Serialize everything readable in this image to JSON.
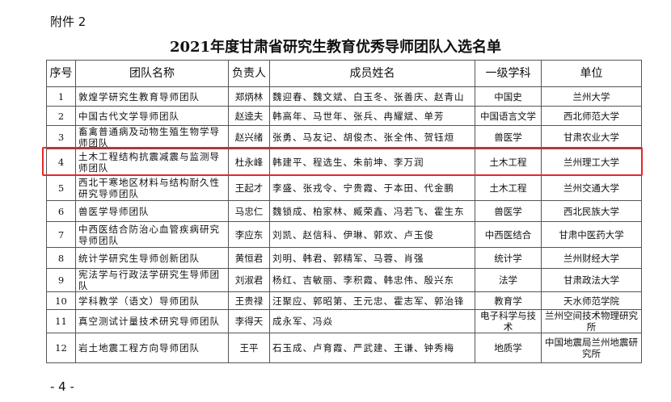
{
  "attachment_label": "附件 2",
  "title": "2021年度甘肃省研究生教育优秀导师团队入选名单",
  "table": {
    "headers": [
      "序号",
      "团队名称",
      "负责人",
      "成员姓名",
      "一级学科",
      "单位"
    ],
    "rows": [
      {
        "no": "1",
        "team": "敦煌学研究生教育导师团队",
        "leader": "郑炳林",
        "members": "魏迎春、魏文斌、白玉冬、张善庆、赵青山",
        "discipline": "中国史",
        "unit": "兰州大学"
      },
      {
        "no": "2",
        "team": "中国古代文学导师团队",
        "leader": "赵逵夫",
        "members": "韩高年、马世年、张兵、冉耀斌、单芳",
        "discipline": "中国语言文学",
        "unit": "西北师范大学"
      },
      {
        "no": "3",
        "team": "畜禽普通病及动物生殖生物学导师团队",
        "leader": "赵兴绪",
        "members": "张勇、马友记、胡俊杰、张全伟、贺钰烜",
        "discipline": "兽医学",
        "unit": "甘肃农业大学"
      },
      {
        "no": "4",
        "team": "土木工程结构抗震减震与监测导师团队",
        "leader": "杜永峰",
        "members": "韩建平、程选生、朱前坤、李万润",
        "discipline": "土木工程",
        "unit": "兰州理工大学"
      },
      {
        "no": "5",
        "team": "西北干寒地区材料与结构耐久性研究导师团队",
        "leader": "王起才",
        "members": "李盛、张戎令、宁贵霞、于本田、代金鹏",
        "discipline": "土木工程",
        "unit": "兰州交通大学"
      },
      {
        "no": "6",
        "team": "兽医学导师团队",
        "leader": "马忠仁",
        "members": "魏锁成、柏家林、臧荣鑫、冯若飞、霍生东",
        "discipline": "兽医学",
        "unit": "西北民族大学"
      },
      {
        "no": "7",
        "team": "中西医结合防治心血管疾病研究导师团队",
        "leader": "李应东",
        "members": "刘凯、赵信科、伊琳、郭欢、卢玉俊",
        "discipline": "中西医结合",
        "unit": "甘肃中医药大学"
      },
      {
        "no": "8",
        "team": "统计学研究生导师创新团队",
        "leader": "黄恒君",
        "members": "刘明、韩君、郭精军、马蓉、肖强",
        "discipline": "统计学",
        "unit": "兰州财经大学"
      },
      {
        "no": "9",
        "team": "宪法学与行政法学研究生导师团队",
        "leader": "刘淑君",
        "members": "杨红、吉敏丽、李积霞、韩忠伟、殷兴东",
        "discipline": "法学",
        "unit": "甘肃政法大学"
      },
      {
        "no": "10",
        "team": "学科教学（语文）导师团队",
        "leader": "王贵禄",
        "members": "汪聚应、郭昭第、王元忠、霍志军、郭治锋",
        "discipline": "教育学",
        "unit": "天水师范学院"
      },
      {
        "no": "11",
        "team": "真空测试计量技术研究导师团队",
        "leader": "李得天",
        "members": "成永军、冯焱",
        "discipline": "电子科学与技术",
        "unit": "兰州空间技术物理研究所"
      },
      {
        "no": "12",
        "team": "岩土地震工程方向导师团队",
        "leader": "王平",
        "members": "石玉成、卢育霞、严武建、王谦、钟秀梅",
        "discipline": "地质学",
        "unit": "中国地震局兰州地震研究所"
      }
    ],
    "highlighted_row": "4",
    "highlight_color": "#e8262b"
  },
  "page_number": "- 4 -"
}
